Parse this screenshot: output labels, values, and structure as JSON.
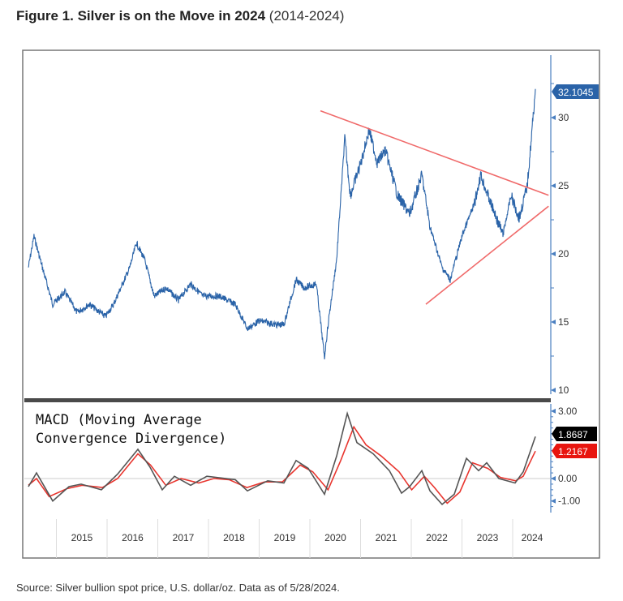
{
  "title": {
    "bold": "Figure 1. Silver is on the Move in 2024",
    "sub": "(2014-2024)"
  },
  "source": "Source: Silver bullion spot price, U.S. dollar/oz. Data as of 5/28/2024.",
  "chart_data": [
    {
      "type": "line",
      "series_color": "#2a63a8",
      "last_value_label": "32.1045",
      "ylim": [
        10,
        33
      ],
      "yticks": [
        "10",
        "15",
        "20",
        "25",
        "30"
      ],
      "xticks": [
        "2015",
        "2016",
        "2017",
        "2018",
        "2019",
        "2020",
        "2021",
        "2022",
        "2023",
        "2024"
      ],
      "x": [
        2014.44,
        2014.55,
        2014.76,
        2014.92,
        2015.16,
        2015.4,
        2015.64,
        2015.96,
        2016.12,
        2016.44,
        2016.57,
        2016.73,
        2016.92,
        2017.16,
        2017.4,
        2017.64,
        2017.88,
        2018.2,
        2018.52,
        2018.76,
        2019.0,
        2019.32,
        2019.48,
        2019.72,
        2019.88,
        2020.12,
        2020.28,
        2020.36,
        2020.52,
        2020.68,
        2020.79,
        2021.0,
        2021.16,
        2021.32,
        2021.48,
        2021.72,
        2021.96,
        2022.2,
        2022.36,
        2022.6,
        2022.76,
        2023.0,
        2023.24,
        2023.36,
        2023.56,
        2023.8,
        2023.96,
        2024.12,
        2024.28,
        2024.36,
        2024.44
      ],
      "y": [
        19.0,
        21.3,
        18.4,
        16.3,
        17.2,
        15.7,
        16.3,
        15.4,
        16.3,
        19.0,
        20.8,
        19.6,
        16.9,
        17.5,
        16.6,
        17.8,
        16.9,
        16.9,
        16.3,
        14.5,
        15.1,
        14.8,
        14.8,
        18.1,
        17.5,
        17.8,
        12.4,
        15.1,
        19.6,
        28.5,
        24.3,
        26.7,
        29.1,
        26.7,
        27.6,
        24.3,
        22.9,
        25.8,
        22.0,
        19.0,
        18.1,
        21.4,
        23.7,
        25.8,
        23.7,
        21.4,
        24.3,
        22.6,
        25.0,
        28.5,
        32.1
      ],
      "trendlines": [
        {
          "name": "upper",
          "color": "#f06a6a",
          "from": [
            2020.2,
            30.5
          ],
          "to": [
            2024.7,
            24.3
          ]
        },
        {
          "name": "lower",
          "color": "#f06a6a",
          "from": [
            2022.28,
            16.3
          ],
          "to": [
            2024.7,
            23.5
          ]
        }
      ]
    },
    {
      "type": "line",
      "title": "MACD (Moving Average Convergence Divergence)",
      "title_lines": [
        "MACD (Moving Average",
        "Convergence Divergence)"
      ],
      "ylim": [
        -1.3,
        3.1
      ],
      "yticks": [
        "3.00",
        "0.00",
        "-1.00"
      ],
      "series": [
        {
          "color": "#555555",
          "last_value_label": "1.8687",
          "x": [
            2014.44,
            2014.6,
            2014.92,
            2015.24,
            2015.48,
            2015.88,
            2016.2,
            2016.6,
            2016.84,
            2017.08,
            2017.32,
            2017.64,
            2017.96,
            2018.52,
            2018.76,
            2019.16,
            2019.48,
            2019.72,
            2019.96,
            2020.28,
            2020.52,
            2020.73,
            2020.92,
            2021.24,
            2021.56,
            2021.8,
            2021.96,
            2022.2,
            2022.36,
            2022.6,
            2022.84,
            2023.08,
            2023.32,
            2023.48,
            2023.72,
            2024.04,
            2024.2,
            2024.44
          ],
          "y": [
            -0.36,
            0.25,
            -1.0,
            -0.36,
            -0.25,
            -0.5,
            0.2,
            1.3,
            0.5,
            -0.5,
            0.1,
            -0.3,
            0.1,
            -0.05,
            -0.55,
            -0.1,
            -0.2,
            0.8,
            0.45,
            -0.7,
            1.0,
            2.9,
            1.6,
            1.1,
            0.35,
            -0.65,
            -0.36,
            0.35,
            -0.55,
            -1.15,
            -0.7,
            0.9,
            0.35,
            0.7,
            0.0,
            -0.2,
            0.3,
            1.87
          ]
        },
        {
          "color": "#e8352e",
          "last_value_label": "1.2167",
          "x": [
            2014.44,
            2014.6,
            2014.85,
            2015.2,
            2015.5,
            2015.9,
            2016.2,
            2016.6,
            2016.85,
            2017.15,
            2017.45,
            2017.8,
            2018.1,
            2018.4,
            2018.75,
            2019.1,
            2019.45,
            2019.8,
            2020.05,
            2020.35,
            2020.6,
            2020.86,
            2021.1,
            2021.4,
            2021.75,
            2022.0,
            2022.25,
            2022.45,
            2022.7,
            2022.95,
            2023.2,
            2023.5,
            2023.75,
            2024.05,
            2024.2,
            2024.44
          ],
          "y": [
            -0.3,
            0.0,
            -0.8,
            -0.45,
            -0.3,
            -0.4,
            0.0,
            1.1,
            0.6,
            -0.3,
            0.0,
            -0.2,
            0.0,
            -0.05,
            -0.4,
            -0.15,
            -0.15,
            0.6,
            0.3,
            -0.5,
            0.8,
            2.3,
            1.5,
            1.0,
            0.3,
            -0.5,
            0.1,
            -0.4,
            -1.1,
            -0.6,
            0.7,
            0.45,
            0.05,
            -0.1,
            0.1,
            1.22
          ]
        }
      ]
    }
  ]
}
